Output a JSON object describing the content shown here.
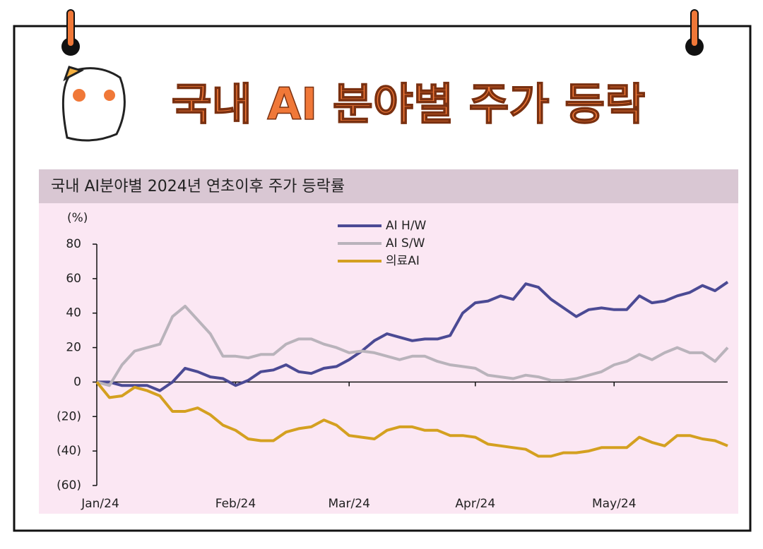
{
  "header": {
    "title": "국내 AI 분야별 주가 등락"
  },
  "chart_data": {
    "type": "line",
    "title": "국내 AI분야별 2024년 연초이후 주가 등락률",
    "y_label": "(%)",
    "categories": [
      "Jan/24",
      null,
      null,
      null,
      null,
      null,
      null,
      null,
      null,
      null,
      null,
      "Feb/24",
      null,
      null,
      null,
      null,
      null,
      null,
      null,
      null,
      "Mar/24",
      null,
      null,
      null,
      null,
      null,
      null,
      null,
      null,
      null,
      "Apr/24",
      null,
      null,
      null,
      null,
      null,
      null,
      null,
      null,
      null,
      null,
      "May/24",
      null,
      null,
      null,
      null,
      null,
      null,
      null,
      null,
      null
    ],
    "series": [
      {
        "name": "AI H/W",
        "color": "#4b4a94",
        "values": [
          0,
          0,
          -2,
          -2,
          -2,
          -5,
          0,
          8,
          6,
          3,
          2,
          -2,
          1,
          6,
          7,
          10,
          6,
          5,
          8,
          9,
          13,
          18,
          24,
          28,
          26,
          24,
          25,
          25,
          27,
          40,
          46,
          47,
          50,
          48,
          57,
          55,
          48,
          43,
          38,
          42,
          43,
          42,
          42,
          50,
          46,
          47,
          50,
          52,
          56,
          53,
          58
        ]
      },
      {
        "name": "AI S/W",
        "color": "#b9b3bb",
        "values": [
          0,
          -2,
          10,
          18,
          20,
          22,
          38,
          44,
          36,
          28,
          15,
          15,
          14,
          16,
          16,
          22,
          25,
          25,
          22,
          20,
          17,
          18,
          17,
          15,
          13,
          15,
          15,
          12,
          10,
          9,
          8,
          4,
          3,
          2,
          4,
          3,
          1,
          1,
          2,
          4,
          6,
          10,
          12,
          16,
          13,
          17,
          20,
          17,
          17,
          12,
          20
        ]
      },
      {
        "name": "의료AI",
        "color": "#d4a020",
        "values": [
          0,
          -9,
          -8,
          -3,
          -5,
          -8,
          -17,
          -17,
          -15,
          -19,
          -25,
          -28,
          -33,
          -34,
          -34,
          -29,
          -27,
          -26,
          -22,
          -25,
          -31,
          -32,
          -33,
          -28,
          -26,
          -26,
          -28,
          -28,
          -31,
          -31,
          -32,
          -36,
          -37,
          -38,
          -39,
          -43,
          -43,
          -41,
          -41,
          -40,
          -38,
          -38,
          -38,
          -32,
          -35,
          -37,
          -31,
          -31,
          -33,
          -34,
          -37
        ]
      }
    ],
    "ylim": [
      -60,
      80
    ],
    "yticks": [
      {
        "value": -60,
        "label": "(60)"
      },
      {
        "value": -40,
        "label": "(40)"
      },
      {
        "value": -20,
        "label": "(20)"
      },
      0,
      20,
      40,
      60,
      80
    ],
    "legend": "top"
  }
}
